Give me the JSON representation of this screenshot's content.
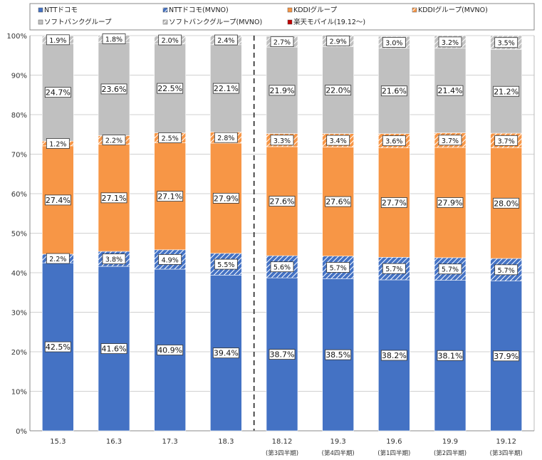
{
  "chart_data": {
    "type": "bar",
    "stacked": true,
    "categories": [
      "15.3",
      "16.3",
      "17.3",
      "18.3",
      "18.12",
      "19.3",
      "19.6",
      "19.9",
      "19.12"
    ],
    "category_sublabels": [
      "",
      "",
      "",
      "",
      "(第3四半期)",
      "(第4四半期)",
      "(第1四半期)",
      "(第2四半期)",
      "(第3四半期)"
    ],
    "ylim": [
      0,
      100
    ],
    "yticks": [
      "0%",
      "10%",
      "20%",
      "30%",
      "40%",
      "50%",
      "60%",
      "70%",
      "80%",
      "90%",
      "100%"
    ],
    "grid": true,
    "legend_position": "top",
    "divider_after_category_index": 3,
    "series": [
      {
        "name": "NTTドコモ",
        "color": "#4472c4",
        "pattern": "solid",
        "values": [
          42.5,
          41.6,
          40.9,
          39.4,
          38.7,
          38.5,
          38.2,
          38.1,
          37.9
        ],
        "labels": [
          "42.5%",
          "41.6%",
          "40.9%",
          "39.4%",
          "38.7%",
          "38.5%",
          "38.2%",
          "38.1%",
          "37.9%"
        ]
      },
      {
        "name": "NTTドコモ(MVNO)",
        "color": "#4472c4",
        "pattern": "hatch",
        "values": [
          2.2,
          3.8,
          4.9,
          5.5,
          5.6,
          5.7,
          5.7,
          5.7,
          5.7
        ],
        "labels": [
          "2.2%",
          "3.8%",
          "4.9%",
          "5.5%",
          "5.6%",
          "5.7%",
          "5.7%",
          "5.7%",
          "5.7%"
        ]
      },
      {
        "name": "KDDIグループ",
        "color": "#f79646",
        "pattern": "solid",
        "values": [
          27.4,
          27.1,
          27.1,
          27.9,
          27.6,
          27.6,
          27.7,
          27.9,
          28.0
        ],
        "labels": [
          "27.4%",
          "27.1%",
          "27.1%",
          "27.9%",
          "27.6%",
          "27.6%",
          "27.7%",
          "27.9%",
          "28.0%"
        ]
      },
      {
        "name": "KDDIグループ(MVNO)",
        "color": "#f79646",
        "pattern": "hatch",
        "values": [
          1.2,
          2.2,
          2.5,
          2.8,
          3.3,
          3.4,
          3.6,
          3.7,
          3.7
        ],
        "labels": [
          "1.2%",
          "2.2%",
          "2.5%",
          "2.8%",
          "3.3%",
          "3.4%",
          "3.6%",
          "3.7%",
          "3.7%"
        ]
      },
      {
        "name": "ソフトバンクグループ",
        "color": "#c0c0c0",
        "pattern": "solid",
        "values": [
          24.7,
          23.6,
          22.5,
          22.1,
          21.9,
          22.0,
          21.6,
          21.4,
          21.2
        ],
        "labels": [
          "24.7%",
          "23.6%",
          "22.5%",
          "22.1%",
          "21.9%",
          "22.0%",
          "21.6%",
          "21.4%",
          "21.2%"
        ]
      },
      {
        "name": "ソフトバンクグループ(MVNO)",
        "color": "#c0c0c0",
        "pattern": "hatch",
        "values": [
          1.9,
          1.8,
          2.0,
          2.4,
          2.7,
          2.9,
          3.0,
          3.2,
          3.5
        ],
        "labels": [
          "1.9%",
          "1.8%",
          "2.0%",
          "2.4%",
          "2.7%",
          "2.9%",
          "3.0%",
          "3.2%",
          "3.5%"
        ]
      },
      {
        "name": "楽天モバイル(19.12～)",
        "color": "#c00000",
        "pattern": "solid",
        "values": [
          0,
          0,
          0,
          0,
          0,
          0,
          0,
          0,
          0
        ],
        "labels": []
      }
    ]
  }
}
